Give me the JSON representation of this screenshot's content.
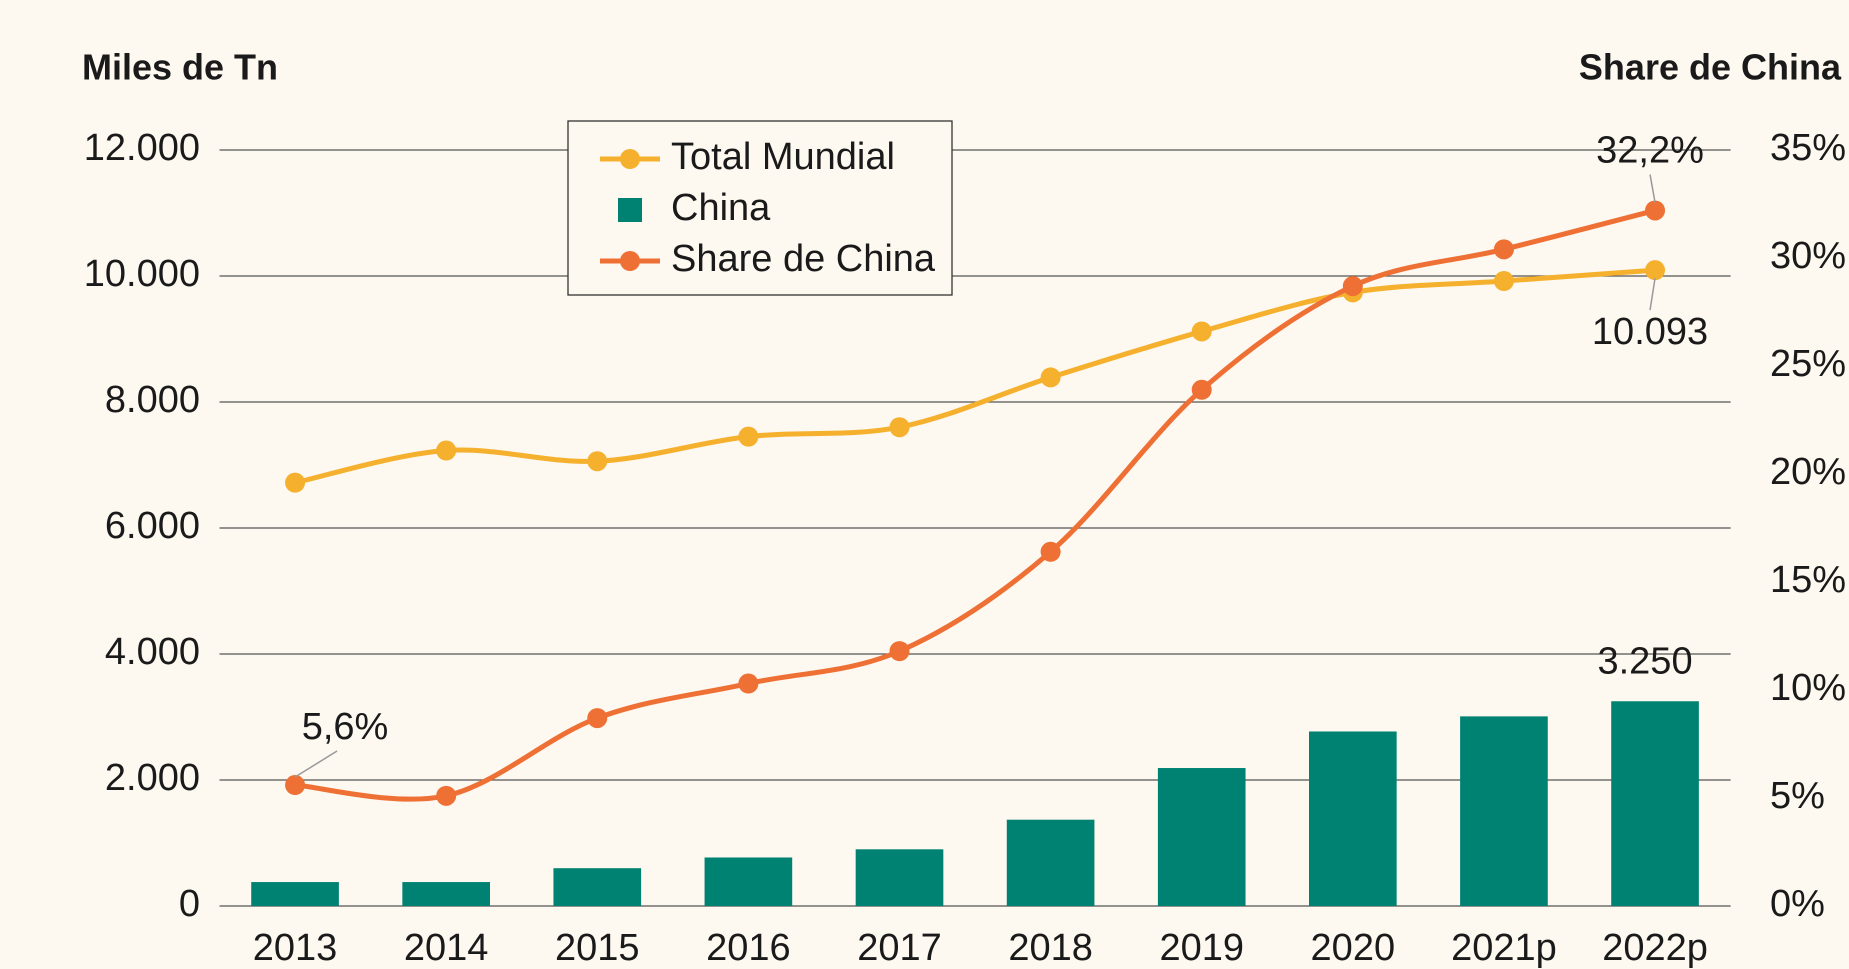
{
  "chart_data": {
    "type": "bar_line_combo",
    "y_label": "Miles de Tn",
    "y2_label": "Share de China",
    "categories": [
      "2013",
      "2014",
      "2015",
      "2016",
      "2017",
      "2018",
      "2019",
      "2020",
      "2021p",
      "2022p"
    ],
    "series": [
      {
        "name": "Total Mundial",
        "type": "line",
        "color": "#f5b02e",
        "axis": "y",
        "values": [
          6720,
          7230,
          7060,
          7450,
          7600,
          8390,
          9120,
          9740,
          9920,
          10093
        ],
        "value_labels": [
          null,
          null,
          null,
          null,
          null,
          null,
          null,
          null,
          null,
          "10.093"
        ]
      },
      {
        "name": "China",
        "type": "bar",
        "color": "#008272",
        "axis": "y",
        "values": [
          380,
          380,
          600,
          770,
          900,
          1370,
          2190,
          2770,
          3010,
          3250
        ],
        "value_labels": [
          null,
          null,
          null,
          null,
          null,
          null,
          null,
          null,
          null,
          "3.250"
        ]
      },
      {
        "name": "Share de China",
        "type": "line",
        "color": "#ee7034",
        "axis": "y2",
        "values": [
          5.6,
          5.1,
          8.7,
          10.3,
          11.8,
          16.4,
          23.9,
          28.7,
          30.4,
          32.2
        ],
        "value_labels": [
          "5,6%",
          null,
          null,
          null,
          null,
          null,
          null,
          null,
          null,
          "32,2%"
        ]
      }
    ],
    "ylim": [
      0,
      12000
    ],
    "yticks": [
      0,
      {
        "value": 2000,
        "label": "2.000"
      },
      {
        "value": 4000,
        "label": "4.000"
      },
      {
        "value": 6000,
        "label": "6.000"
      },
      {
        "value": 8000,
        "label": "8.000"
      },
      {
        "value": 10000,
        "label": "10.000"
      },
      {
        "value": 12000,
        "label": "12.000"
      }
    ],
    "y2lim": [
      0,
      35
    ],
    "y2ticks": [
      {
        "value": 0,
        "label": "0%"
      },
      {
        "value": 5,
        "label": "5%"
      },
      {
        "value": 10,
        "label": "10%"
      },
      {
        "value": 15,
        "label": "15%"
      },
      {
        "value": 20,
        "label": "20%"
      },
      {
        "value": 25,
        "label": "25%"
      },
      {
        "value": 30,
        "label": "30%"
      },
      {
        "value": 35,
        "label": "35%"
      }
    ],
    "grid": true,
    "legend": "top-left"
  }
}
